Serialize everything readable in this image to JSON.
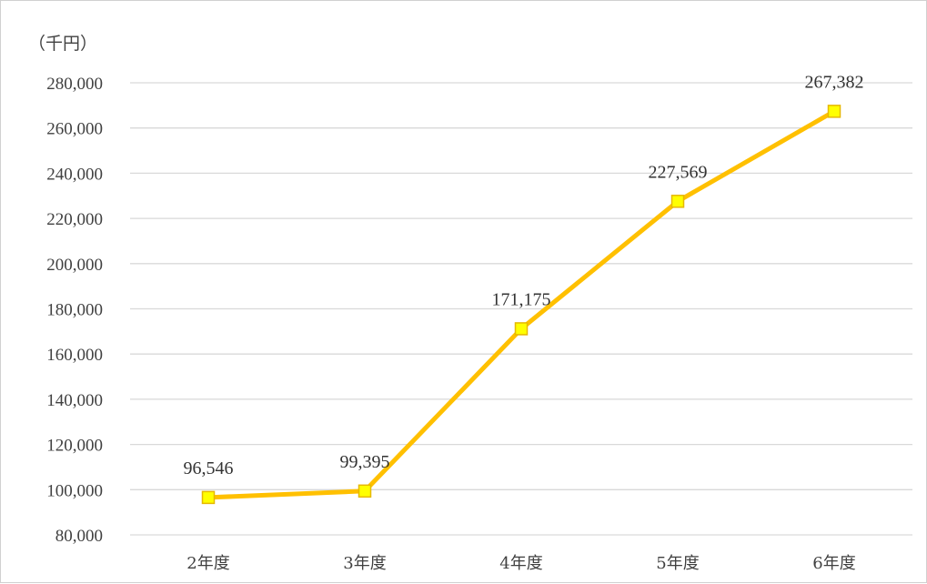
{
  "chart_data": {
    "type": "line",
    "unit_label": "（千円）",
    "categories": [
      "2年度",
      "3年度",
      "4年度",
      "5年度",
      "6年度"
    ],
    "series": [
      {
        "values": [
          96546,
          99395,
          171175,
          227569,
          267382
        ],
        "data_labels": [
          "96,546",
          "99,395",
          "171,175",
          "227,569",
          "267,382"
        ],
        "line_color": "#FFC000",
        "marker_fill": "#FFFF00",
        "marker_stroke": "#E6B800",
        "marker": "square"
      }
    ],
    "ylim": [
      80000,
      280000
    ],
    "yticks": [
      80000,
      100000,
      120000,
      140000,
      160000,
      180000,
      200000,
      220000,
      240000,
      260000,
      280000
    ],
    "ytick_labels": [
      "80,000",
      "100,000",
      "120,000",
      "140,000",
      "160,000",
      "180,000",
      "200,000",
      "220,000",
      "240,000",
      "260,000",
      "280,000"
    ],
    "grid": true,
    "gridline_color": "#d9d9d9",
    "legend": "none"
  }
}
